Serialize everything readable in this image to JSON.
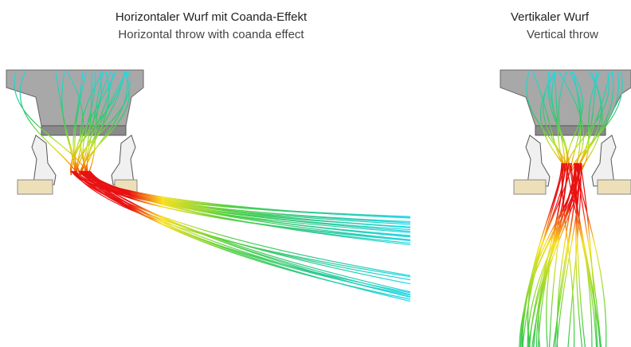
{
  "panels": [
    {
      "title": "Horizontaler Wurf mit Coanda-Effekt",
      "subtitle": "Horizontal throw with coanda effect"
    },
    {
      "title": "Vertikaler Wurf",
      "subtitle": "Vertical throw"
    }
  ]
}
